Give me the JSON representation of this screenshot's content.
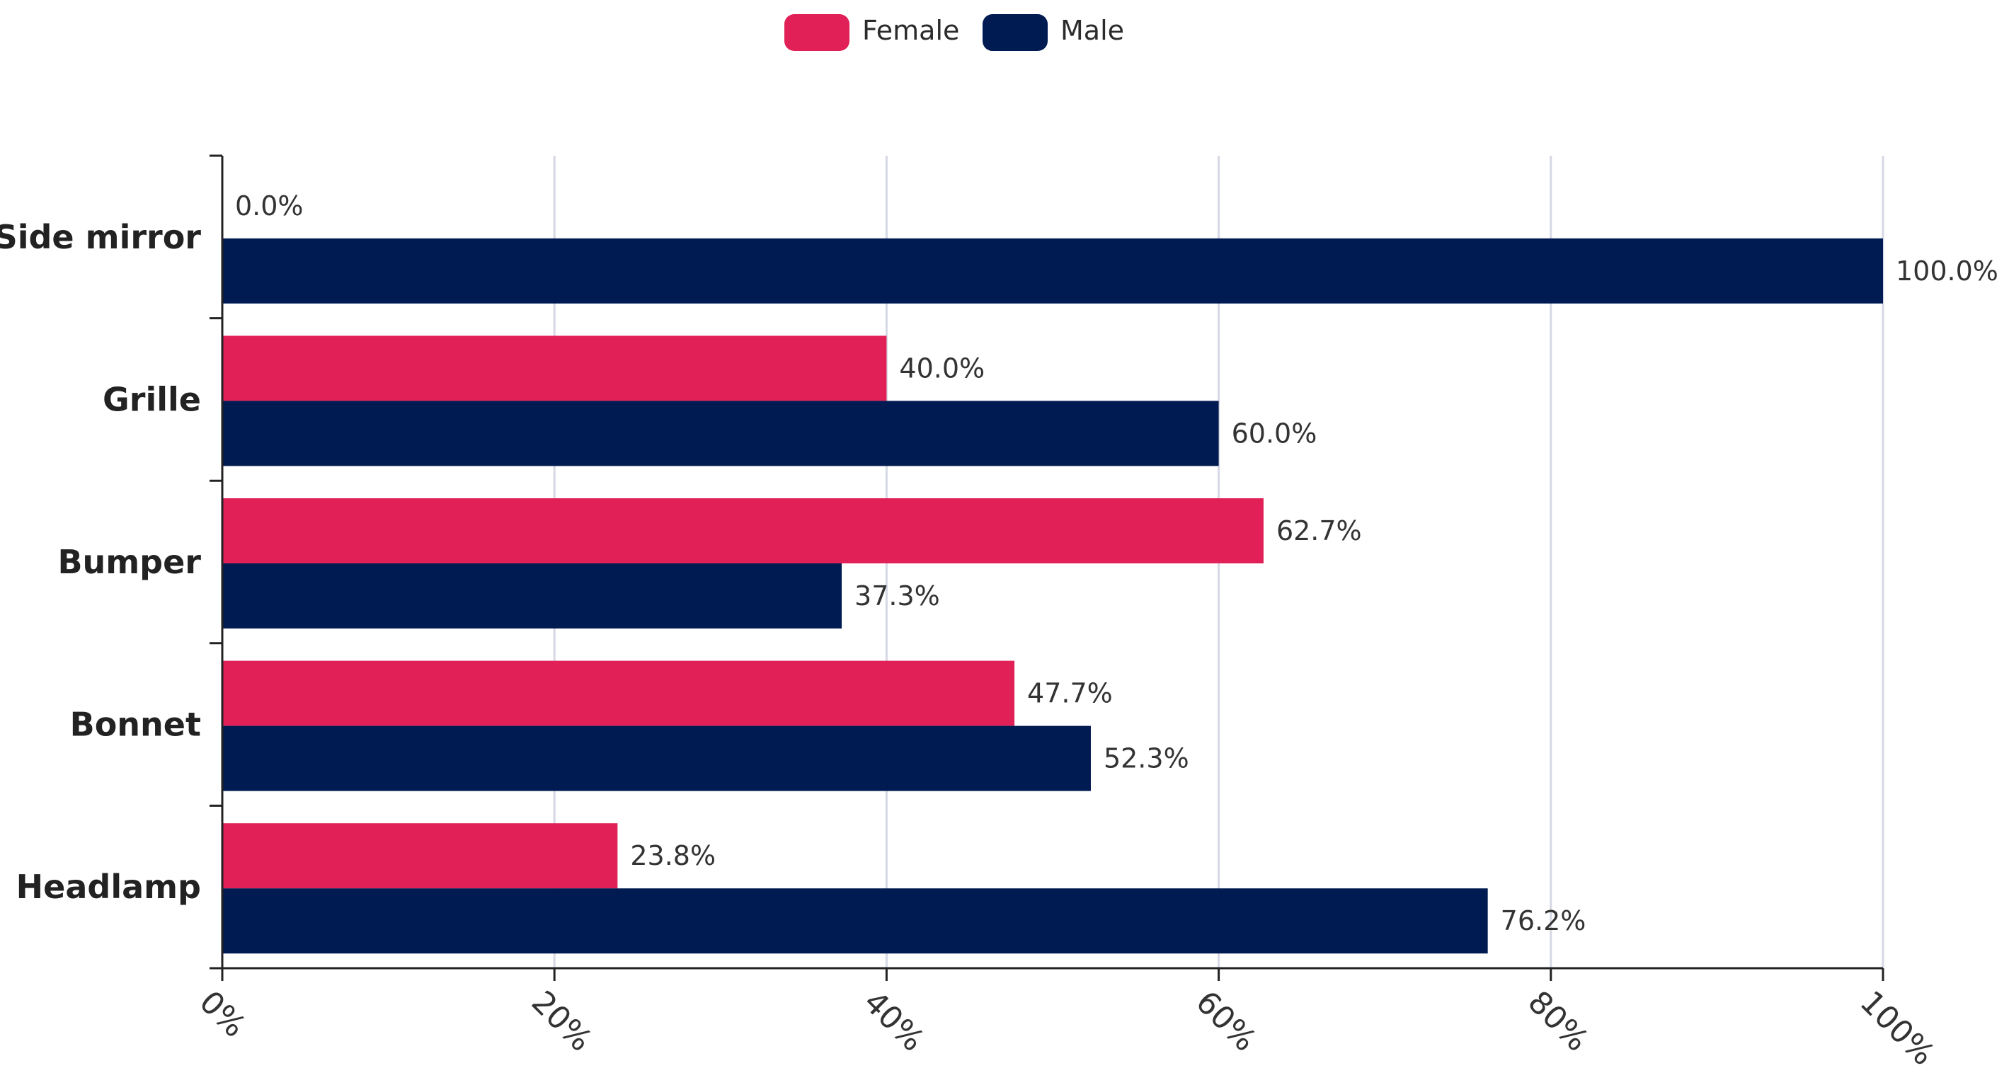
{
  "chart_data": {
    "type": "bar",
    "orientation": "horizontal",
    "title": "",
    "xlabel": "",
    "ylabel": "",
    "categories": [
      "Side mirror",
      "Grille",
      "Bumper",
      "Bonnet",
      "Headlamp"
    ],
    "series": [
      {
        "name": "Female",
        "color": "#e02057",
        "values": [
          0.0,
          40.0,
          62.7,
          47.7,
          23.8
        ],
        "labels": [
          "0.0%",
          "40.0%",
          "62.7%",
          "47.7%",
          "23.8%"
        ]
      },
      {
        "name": "Male",
        "color": "#001a52",
        "values": [
          100.0,
          60.0,
          37.3,
          52.3,
          76.2
        ],
        "labels": [
          "100.0%",
          "60.0%",
          "37.3%",
          "52.3%",
          "76.2%"
        ]
      }
    ],
    "xlim": [
      0,
      100
    ],
    "ticks": [
      0,
      20,
      40,
      60,
      80,
      100
    ],
    "tick_labels": [
      "0%",
      "20%",
      "40%",
      "60%",
      "80%",
      "100%"
    ],
    "grid": true,
    "legend_position": "top-center"
  }
}
